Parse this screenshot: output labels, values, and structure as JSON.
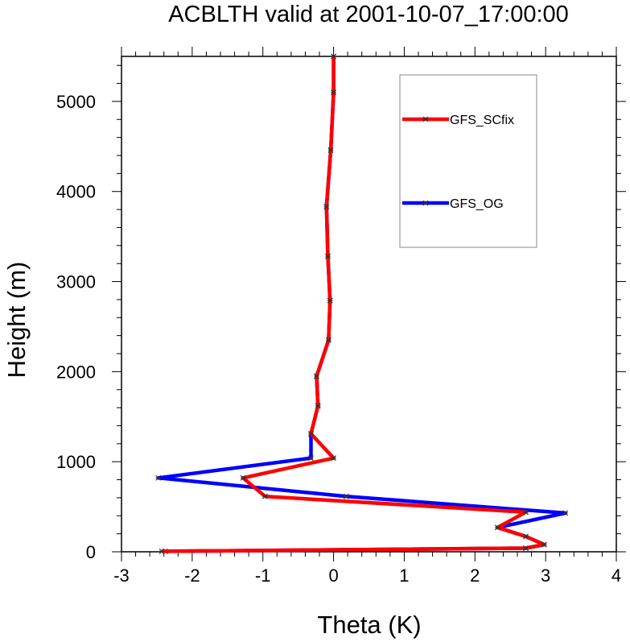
{
  "chart_data": {
    "type": "line",
    "title": "ACBLTH valid at 2001-10-07_17:00:00",
    "xlabel": "Theta (K)",
    "ylabel": "Height (m)",
    "xlim": [
      -3,
      4
    ],
    "ylim": [
      0,
      5500
    ],
    "xticks": [
      -3,
      -2,
      -1,
      0,
      1,
      2,
      3,
      4
    ],
    "yticks": [
      0,
      1000,
      2000,
      3000,
      4000,
      5000
    ],
    "grid": false,
    "legend_position": "top-right",
    "series": [
      {
        "name": "GFS_OG",
        "color": "#0000ff",
        "points": [
          [
            -2.38,
            5
          ],
          [
            2.72,
            40
          ],
          [
            2.98,
            80
          ],
          [
            2.72,
            170
          ],
          [
            2.32,
            270
          ],
          [
            3.28,
            430
          ],
          [
            0.18,
            615
          ],
          [
            -2.48,
            820
          ],
          [
            -0.32,
            1040
          ],
          [
            -0.32,
            1310
          ],
          [
            -0.22,
            1620
          ],
          [
            -0.24,
            1950
          ],
          [
            -0.07,
            2350
          ],
          [
            -0.05,
            2790
          ],
          [
            -0.08,
            3280
          ],
          [
            -0.1,
            3830
          ],
          [
            -0.04,
            4460
          ],
          [
            0.0,
            5100
          ],
          [
            0.0,
            5500
          ]
        ]
      },
      {
        "name": "GFS_SCfix",
        "color": "#ff0000",
        "points": [
          [
            -2.43,
            5
          ],
          [
            2.72,
            40
          ],
          [
            2.98,
            80
          ],
          [
            2.72,
            170
          ],
          [
            2.32,
            270
          ],
          [
            2.72,
            440
          ],
          [
            -0.97,
            615
          ],
          [
            -1.28,
            820
          ],
          [
            0.0,
            1040
          ],
          [
            -0.32,
            1310
          ],
          [
            -0.22,
            1620
          ],
          [
            -0.24,
            1950
          ],
          [
            -0.07,
            2350
          ],
          [
            -0.05,
            2790
          ],
          [
            -0.08,
            3280
          ],
          [
            -0.1,
            3830
          ],
          [
            -0.04,
            4460
          ],
          [
            0.0,
            5100
          ],
          [
            0.0,
            5500
          ]
        ]
      }
    ],
    "legend_order": [
      "GFS_SCfix",
      "GFS_OG"
    ]
  }
}
